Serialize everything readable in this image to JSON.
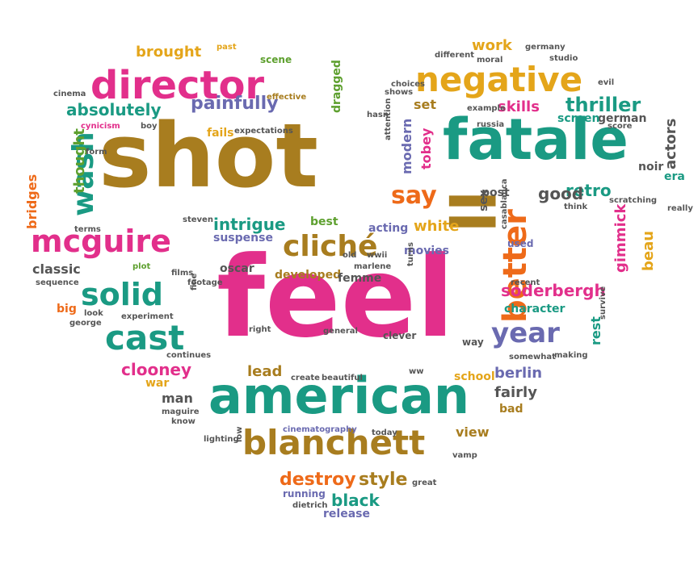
{
  "palette": {
    "gold": "#a87d1f",
    "pink": "#e22f8b",
    "teal": "#1a9a83",
    "purple": "#6a6ab0",
    "orange": "#ee6a19",
    "yellow": "#e4a51a",
    "green": "#5ea02f",
    "gray": "#555555"
  },
  "words": [
    "shot",
    "feel",
    "fatale",
    "american",
    "director",
    "negative",
    "ll",
    "blanchett",
    "cliché",
    "mcguire",
    "wash",
    "solid",
    "cast",
    "painfully",
    "absolutely",
    "better",
    "say",
    "year",
    "retro",
    "thriller",
    "soderbergh",
    "gimmick",
    "beau",
    "destroy",
    "style",
    "black",
    "clooney",
    "intrigue",
    "brought",
    "set",
    "skills",
    "work",
    "thought",
    "actors",
    "bridges",
    "good",
    "white",
    "tobey",
    "modern",
    "classic",
    "lead",
    "war",
    "man",
    "berlin",
    "fairly",
    "view",
    "character",
    "rest",
    "dragged",
    "fails",
    "post",
    "acting",
    "movies",
    "best",
    "sex",
    "german",
    "screen",
    "noir",
    "era",
    "expectations",
    "scene",
    "past",
    "effective",
    "cynicism",
    "boy",
    "cinema",
    "form",
    "terms",
    "plot",
    "sequence",
    "big",
    "george",
    "look",
    "experiment",
    "continues",
    "maguire",
    "know",
    "lighting",
    "low",
    "today",
    "cinematography",
    "running",
    "dietrich",
    "release",
    "great",
    "vamp",
    "school",
    "bad",
    "clever",
    "general",
    "developed",
    "femme",
    "oscar",
    "steven",
    "suspense",
    "films",
    "footage",
    "fine",
    "right",
    "create",
    "beautiful",
    "ww",
    "way",
    "survive",
    "making",
    "somewhat",
    "recent",
    "casablanca",
    "used",
    "think",
    "really",
    "scratching",
    "turns",
    "wwii",
    "old",
    "marlene",
    "attention",
    "choices",
    "shows",
    "hasn",
    "russia",
    "example",
    "moral",
    "different",
    "germany",
    "studio",
    "evil",
    "score"
  ]
}
